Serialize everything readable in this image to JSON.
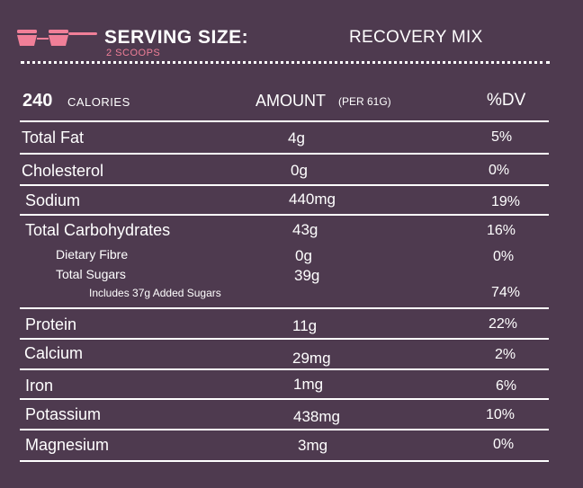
{
  "header": {
    "serving_title": "SERVING SIZE:",
    "serving_value": "2 SCOOPS",
    "product_name": "RECOVERY MIX",
    "accent_color": "#f07f98",
    "background_color": "#4e3a4f",
    "icon": "measuring-scoops-icon"
  },
  "columns": {
    "calories_value": "240",
    "calories_label": "CALORIES",
    "amount_label": "AMOUNT",
    "amount_per": "(PER 61G)",
    "dv_label": "%DV"
  },
  "rows": [
    {
      "label": "Total Fat",
      "amount": "4g",
      "dv": "5%"
    },
    {
      "label": "Cholesterol",
      "amount": "0g",
      "dv": "0%"
    },
    {
      "label": "Sodium",
      "amount": "440mg",
      "dv": "19%"
    },
    {
      "label": "Total Carbohydrates",
      "amount": "43g",
      "dv": "16%"
    },
    {
      "label": "Dietary Fibre",
      "amount": "0g",
      "dv": "0%"
    },
    {
      "label": "Total Sugars",
      "amount": "39g",
      "dv": ""
    },
    {
      "label": "Includes 37g Added Sugars",
      "amount": "",
      "dv": "74%"
    },
    {
      "label": "Protein",
      "amount": "11g",
      "dv": "22%"
    },
    {
      "label": "Calcium",
      "amount": "29mg",
      "dv": "2%"
    },
    {
      "label": "Iron",
      "amount": "1mg",
      "dv": "6%"
    },
    {
      "label": "Potassium",
      "amount": "438mg",
      "dv": "10%"
    },
    {
      "label": "Magnesium",
      "amount": "3mg",
      "dv": "0%"
    }
  ]
}
